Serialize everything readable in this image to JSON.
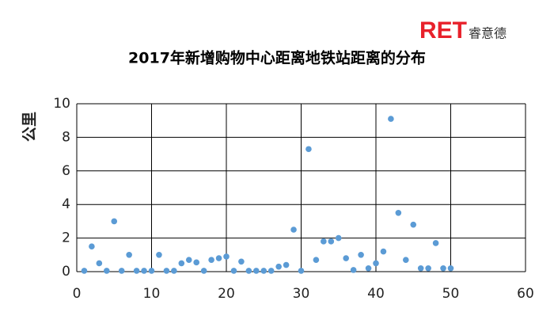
{
  "logo": {
    "brand": "RET",
    "name": "睿意德"
  },
  "chart_data": {
    "type": "scatter",
    "title": "2017年新增购物中心距离地铁站距离的分布",
    "y_label": "公里",
    "x": [
      1,
      2,
      3,
      4,
      5,
      6,
      7,
      8,
      9,
      10,
      11,
      12,
      13,
      14,
      15,
      16,
      17,
      18,
      19,
      20,
      21,
      22,
      23,
      24,
      25,
      26,
      27,
      28,
      29,
      30,
      31,
      32,
      33,
      34,
      35,
      36,
      37,
      38,
      39,
      40,
      41,
      42,
      43,
      44,
      45,
      46,
      47,
      48,
      49,
      50
    ],
    "values": [
      0.05,
      1.5,
      0.5,
      0.05,
      3.0,
      0.05,
      1.0,
      0.05,
      0.05,
      0.05,
      1.0,
      0.05,
      0.05,
      0.5,
      0.7,
      0.55,
      0.05,
      0.7,
      0.8,
      0.9,
      0.05,
      0.6,
      0.05,
      0.05,
      0.05,
      0.05,
      0.3,
      0.4,
      2.5,
      0.05,
      7.3,
      0.7,
      1.8,
      1.8,
      2.0,
      0.8,
      0.1,
      1.0,
      0.2,
      0.5,
      1.2,
      9.1,
      3.5,
      0.7,
      2.8,
      0.2,
      0.2,
      1.7,
      0.2,
      0.2
    ],
    "color": "#5b9bd5",
    "xlim": [
      0,
      60
    ],
    "xticks": [
      0,
      10,
      20,
      30,
      40,
      50,
      60
    ],
    "ylim": [
      0,
      10
    ],
    "yticks": [
      0,
      2,
      4,
      6,
      8,
      10
    ],
    "grid": true
  }
}
